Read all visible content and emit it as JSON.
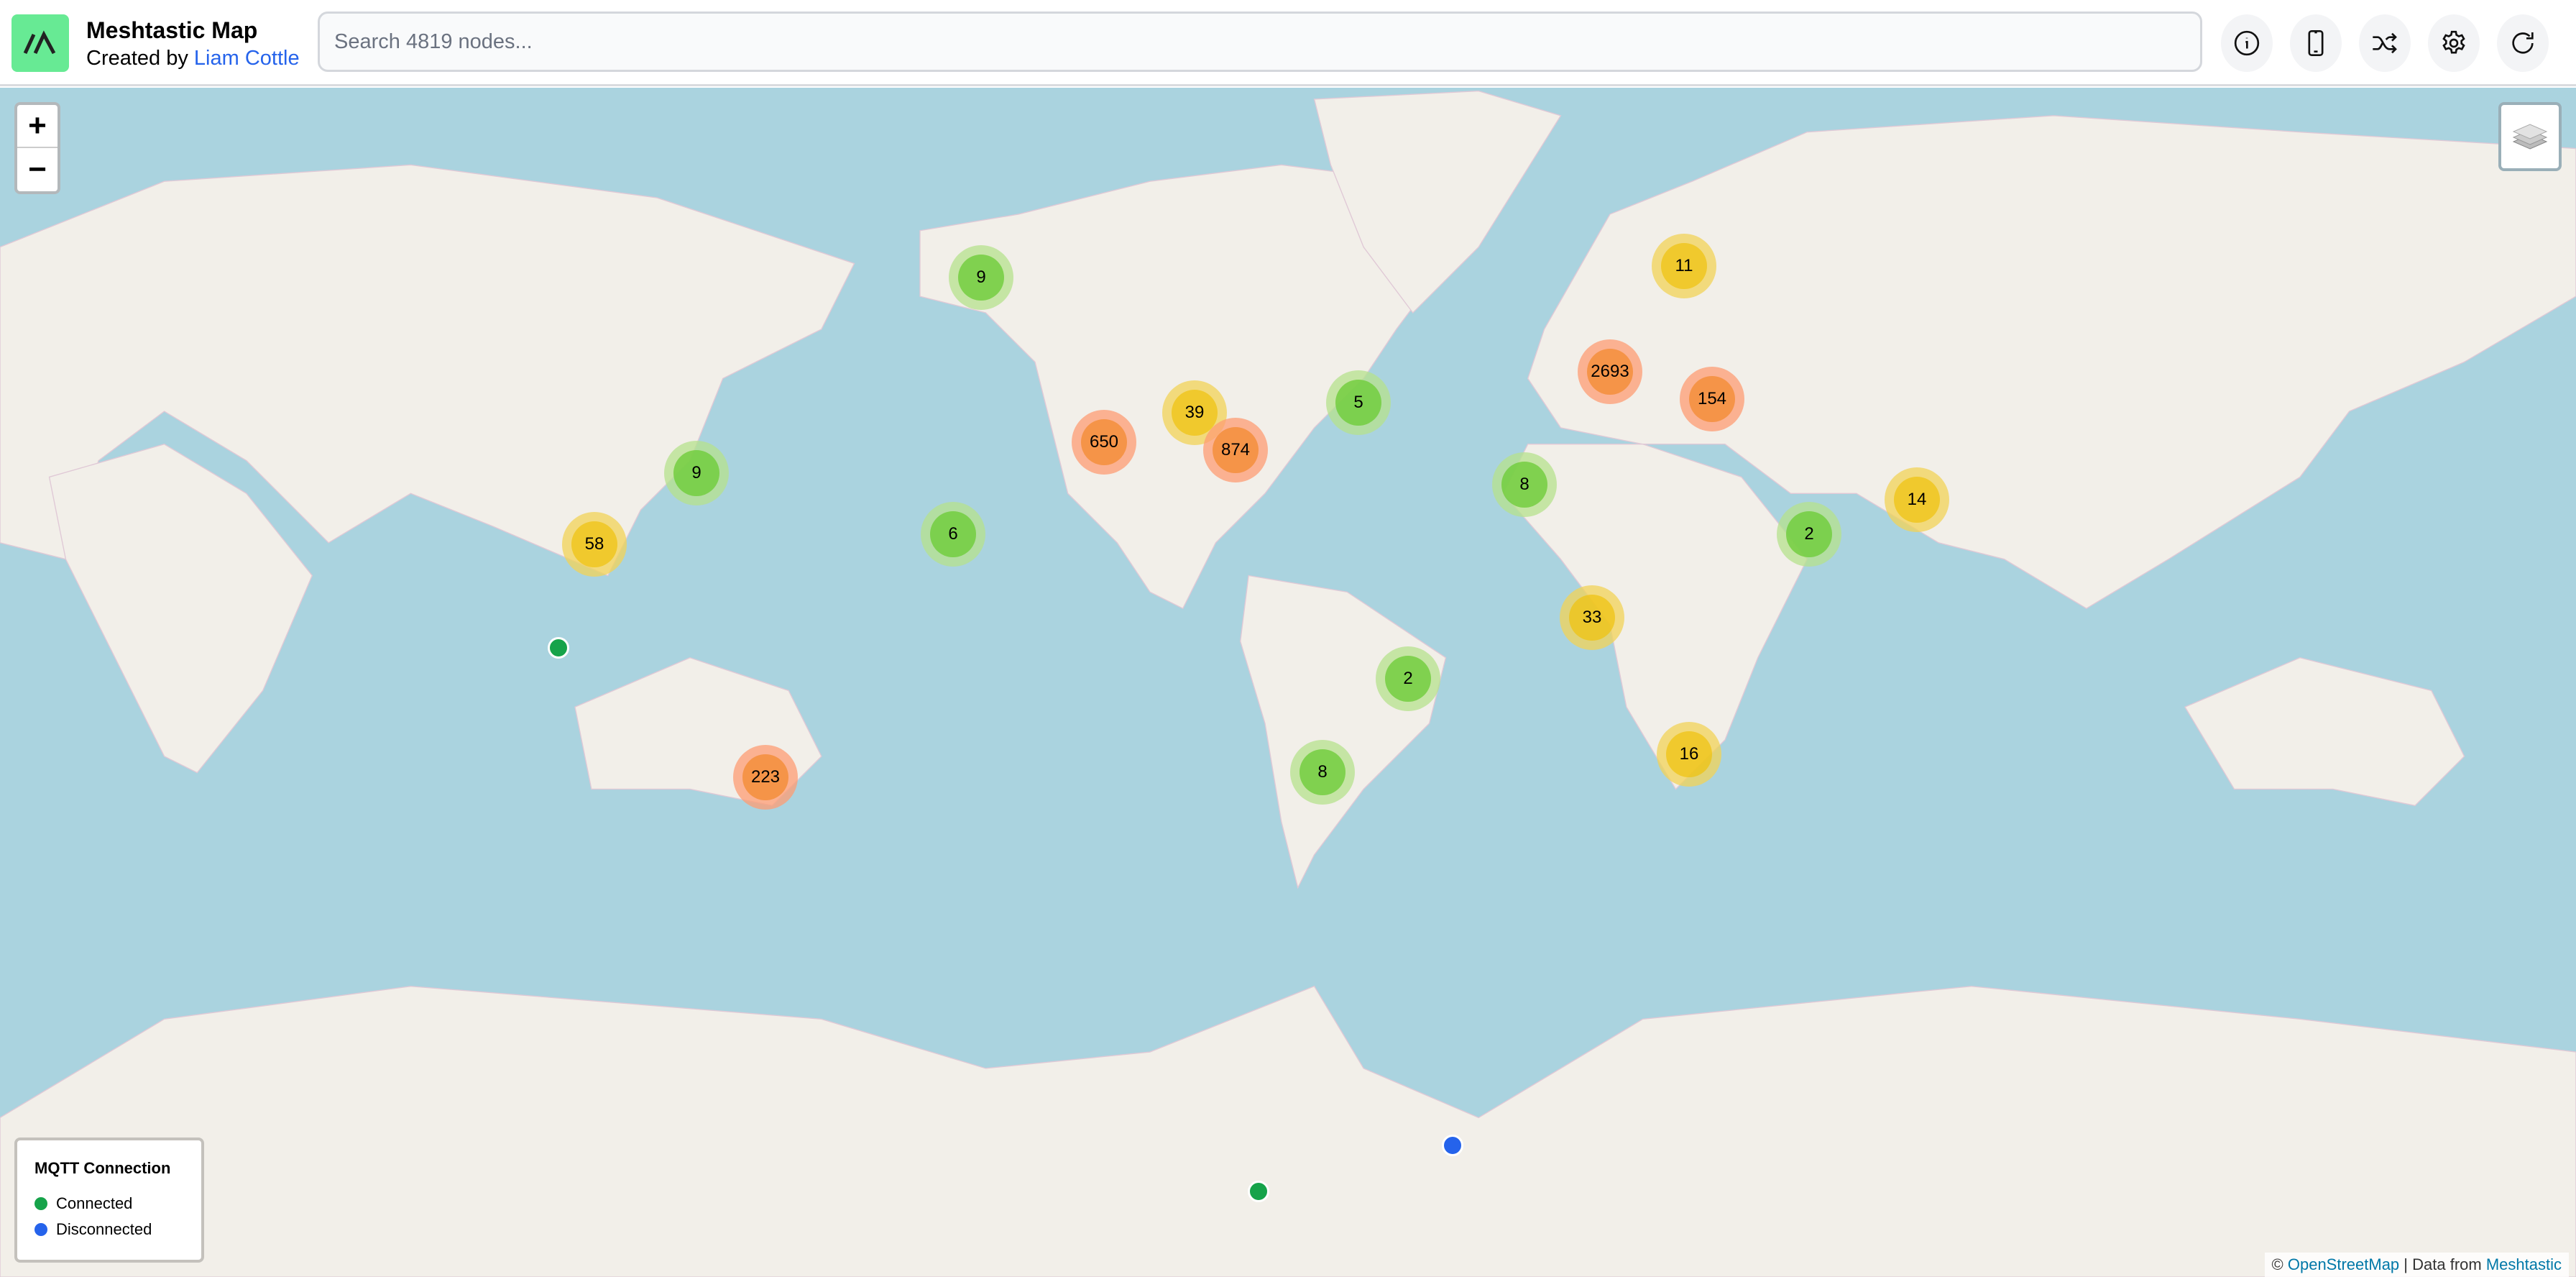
{
  "header": {
    "title": "Meshtastic Map",
    "credit_prefix": "Created by",
    "credit_author": "Liam Cottle",
    "search_placeholder": "Search 4819 nodes...",
    "search_value": ""
  },
  "toolbar": [
    {
      "icon": "info-icon"
    },
    {
      "icon": "phone-icon"
    },
    {
      "icon": "shuffle-icon"
    },
    {
      "icon": "gear-icon"
    },
    {
      "icon": "refresh-icon"
    }
  ],
  "map": {
    "zoom_in": "+",
    "zoom_out": "−",
    "colors": {
      "ocean": "#aad3df",
      "land": "#f2efe9"
    },
    "clusters": [
      "9",
      "11",
      "2693",
      "154",
      "5",
      "39",
      "650",
      "874",
      "9",
      "8",
      "14",
      "58",
      "6",
      "2",
      "33",
      "2",
      "223",
      "8",
      "16"
    ]
  },
  "legend": {
    "title": "MQTT Connection",
    "items": [
      {
        "label": "Connected",
        "color": "#16a34a"
      },
      {
        "label": "Disconnected",
        "color": "#2563eb"
      }
    ]
  },
  "attribution": {
    "copyright": "©",
    "osm": "OpenStreetMap",
    "sep": "| Data from",
    "meshtastic": "Meshtastic"
  }
}
